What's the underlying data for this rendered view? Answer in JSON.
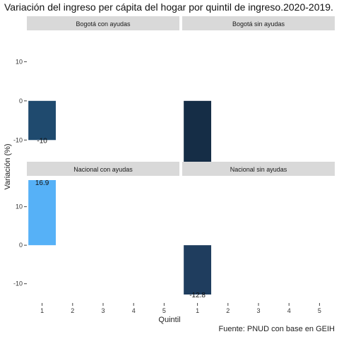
{
  "chart_data": {
    "type": "bar",
    "title": "Variación del ingreso per cápita del hogar por quintil de ingreso.2020-2019.",
    "caption": "Fuente: PNUD con base en GEIH",
    "xlabel": "Quintil",
    "ylabel": "Variación (%)",
    "categories": [
      "1",
      "2",
      "3",
      "4",
      "5"
    ],
    "ylim": [
      -15,
      18
    ],
    "yticks": [
      -10,
      0,
      10
    ],
    "grid": false,
    "facets": [
      {
        "name": "Bogotá con ayudas",
        "categories": [
          "1"
        ],
        "values": [
          -10
        ],
        "labels": [
          "-10"
        ],
        "color": "#1f4a6e"
      },
      {
        "name": "Bogotá sin ayudas",
        "categories": [
          "1"
        ],
        "values": [
          -17.7
        ],
        "labels": [
          "-17.7"
        ],
        "color": "#152d46"
      },
      {
        "name": "Nacional con ayudas",
        "categories": [
          "1"
        ],
        "values": [
          16.9
        ],
        "labels": [
          "16.9"
        ],
        "color": "#56b1f7"
      },
      {
        "name": "Nacional sin ayudas",
        "categories": [
          "1"
        ],
        "values": [
          -12.8
        ],
        "labels": [
          "-12.8"
        ],
        "color": "#1f3d5e"
      }
    ]
  }
}
